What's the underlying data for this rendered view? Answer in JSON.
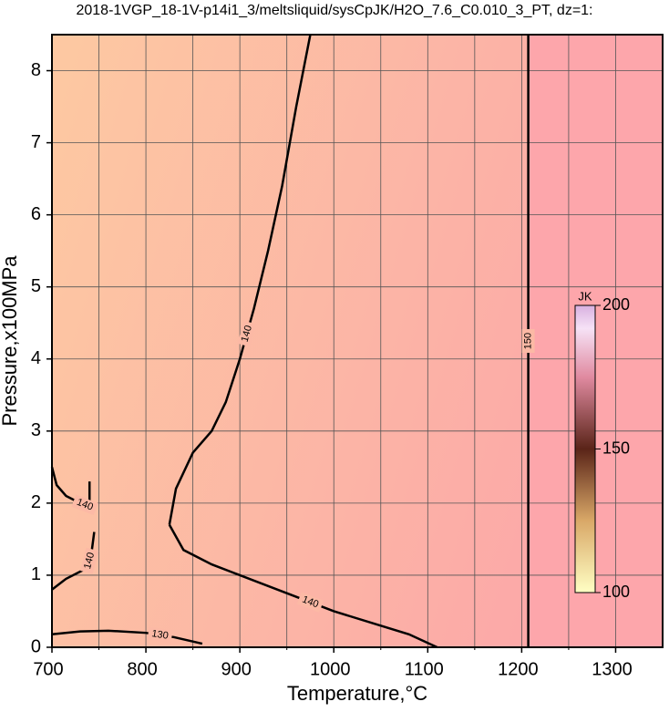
{
  "chart_data": {
    "type": "contour",
    "title": "2018-1VGP_18-1V-p14i1_3/meltsliquid/sysCpJK/H2O_7.6_C0.010_3_PT, dz=1:",
    "x_label": "Temperature,°C",
    "y_label": "Pressure,x100MPa",
    "xlim": [
      700,
      1350
    ],
    "ylim": [
      0,
      8.5
    ],
    "xticks": [
      700,
      800,
      900,
      1000,
      1100,
      1200,
      1300
    ],
    "yticks": [
      0,
      1,
      2,
      3,
      4,
      5,
      6,
      7,
      8
    ],
    "x_minor_ticks": [
      750,
      850,
      950,
      1050,
      1150,
      1250
    ],
    "grid": true,
    "contours": [
      {
        "level": 140,
        "x": [
          825,
          832,
          850,
          870,
          885,
          900,
          915,
          930,
          945,
          960,
          975
        ],
        "y": [
          1.7,
          2.2,
          2.7,
          3.0,
          3.4,
          4.0,
          4.7,
          5.5,
          6.4,
          7.5,
          8.5
        ]
      },
      {
        "level": 140,
        "x": [
          825,
          840,
          870,
          900,
          950,
          1000,
          1050,
          1080,
          1110
        ],
        "y": [
          1.7,
          1.35,
          1.15,
          1.0,
          0.75,
          0.5,
          0.3,
          0.18,
          0.0
        ]
      },
      {
        "level": 140,
        "x": [
          700,
          705,
          715,
          730,
          740,
          740
        ],
        "y": [
          2.5,
          2.25,
          2.1,
          2.0,
          1.95,
          2.3
        ]
      },
      {
        "level": 140,
        "x": [
          700,
          715,
          730,
          738,
          742,
          745
        ],
        "y": [
          0.8,
          0.95,
          1.05,
          1.1,
          1.3,
          1.6
        ]
      },
      {
        "level": 130,
        "x": [
          700,
          730,
          760,
          800,
          830,
          860
        ],
        "y": [
          0.18,
          0.22,
          0.23,
          0.2,
          0.14,
          0.05
        ]
      },
      {
        "level": 150,
        "x": [
          1207,
          1207
        ],
        "y": [
          0.0,
          8.5
        ]
      }
    ],
    "colorbar": {
      "label": "JK",
      "lim": [
        100,
        200
      ],
      "ticks": [
        100,
        150,
        200
      ]
    }
  }
}
